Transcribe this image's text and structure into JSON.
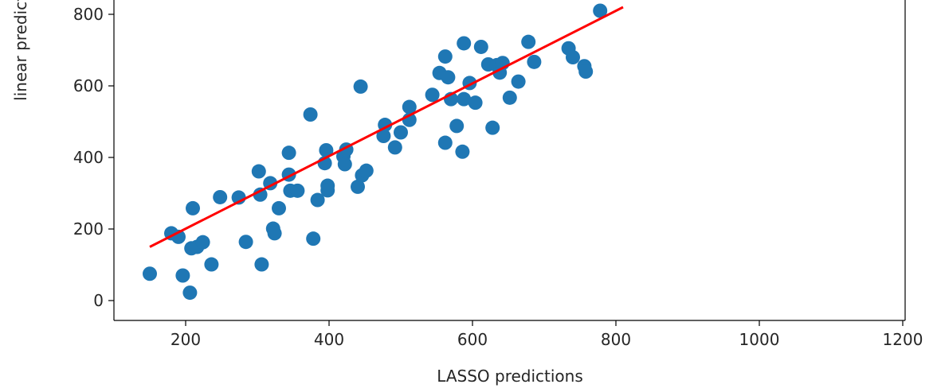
{
  "chart_data": {
    "type": "scatter",
    "title": "",
    "xlabel": "LASSO predictions",
    "ylabel": "linear predictions",
    "xlim": [
      100,
      1200
    ],
    "ylim": [
      -50,
      800
    ],
    "x_ticks": [
      200,
      400,
      600,
      800,
      1000,
      1200
    ],
    "y_ticks": [
      0,
      200,
      400,
      600,
      800
    ],
    "grid": false,
    "point_color": "#1f77b4",
    "line_color": "#ff0000",
    "series": [
      {
        "type": "scatter",
        "points": [
          [
            150,
            75
          ],
          [
            180,
            188
          ],
          [
            190,
            178
          ],
          [
            196,
            70
          ],
          [
            206,
            22
          ],
          [
            208,
            146
          ],
          [
            210,
            258
          ],
          [
            216,
            150
          ],
          [
            224,
            163
          ],
          [
            236,
            101
          ],
          [
            248,
            289
          ],
          [
            274,
            288
          ],
          [
            284,
            164
          ],
          [
            302,
            361
          ],
          [
            304,
            296
          ],
          [
            306,
            101
          ],
          [
            318,
            328
          ],
          [
            322,
            201
          ],
          [
            324,
            188
          ],
          [
            330,
            258
          ],
          [
            344,
            413
          ],
          [
            344,
            352
          ],
          [
            346,
            307
          ],
          [
            356,
            307
          ],
          [
            374,
            520
          ],
          [
            378,
            173
          ],
          [
            384,
            281
          ],
          [
            394,
            384
          ],
          [
            396,
            420
          ],
          [
            398,
            321
          ],
          [
            398,
            308
          ],
          [
            420,
            403
          ],
          [
            422,
            381
          ],
          [
            424,
            422
          ],
          [
            440,
            318
          ],
          [
            444,
            598
          ],
          [
            446,
            350
          ],
          [
            452,
            363
          ],
          [
            476,
            460
          ],
          [
            478,
            491
          ],
          [
            492,
            428
          ],
          [
            500,
            470
          ],
          [
            512,
            541
          ],
          [
            512,
            505
          ],
          [
            544,
            575
          ],
          [
            554,
            636
          ],
          [
            562,
            682
          ],
          [
            562,
            441
          ],
          [
            566,
            624
          ],
          [
            570,
            563
          ],
          [
            578,
            488
          ],
          [
            586,
            416
          ],
          [
            588,
            719
          ],
          [
            588,
            563
          ],
          [
            596,
            608
          ],
          [
            604,
            553
          ],
          [
            612,
            709
          ],
          [
            622,
            660
          ],
          [
            628,
            483
          ],
          [
            634,
            658
          ],
          [
            638,
            637
          ],
          [
            642,
            664
          ],
          [
            652,
            567
          ],
          [
            664,
            612
          ],
          [
            678,
            723
          ],
          [
            686,
            667
          ],
          [
            734,
            705
          ],
          [
            740,
            680
          ],
          [
            756,
            655
          ],
          [
            758,
            640
          ],
          [
            778,
            810
          ]
        ]
      },
      {
        "type": "line",
        "points": [
          [
            150,
            150
          ],
          [
            810,
            820
          ]
        ]
      }
    ]
  }
}
